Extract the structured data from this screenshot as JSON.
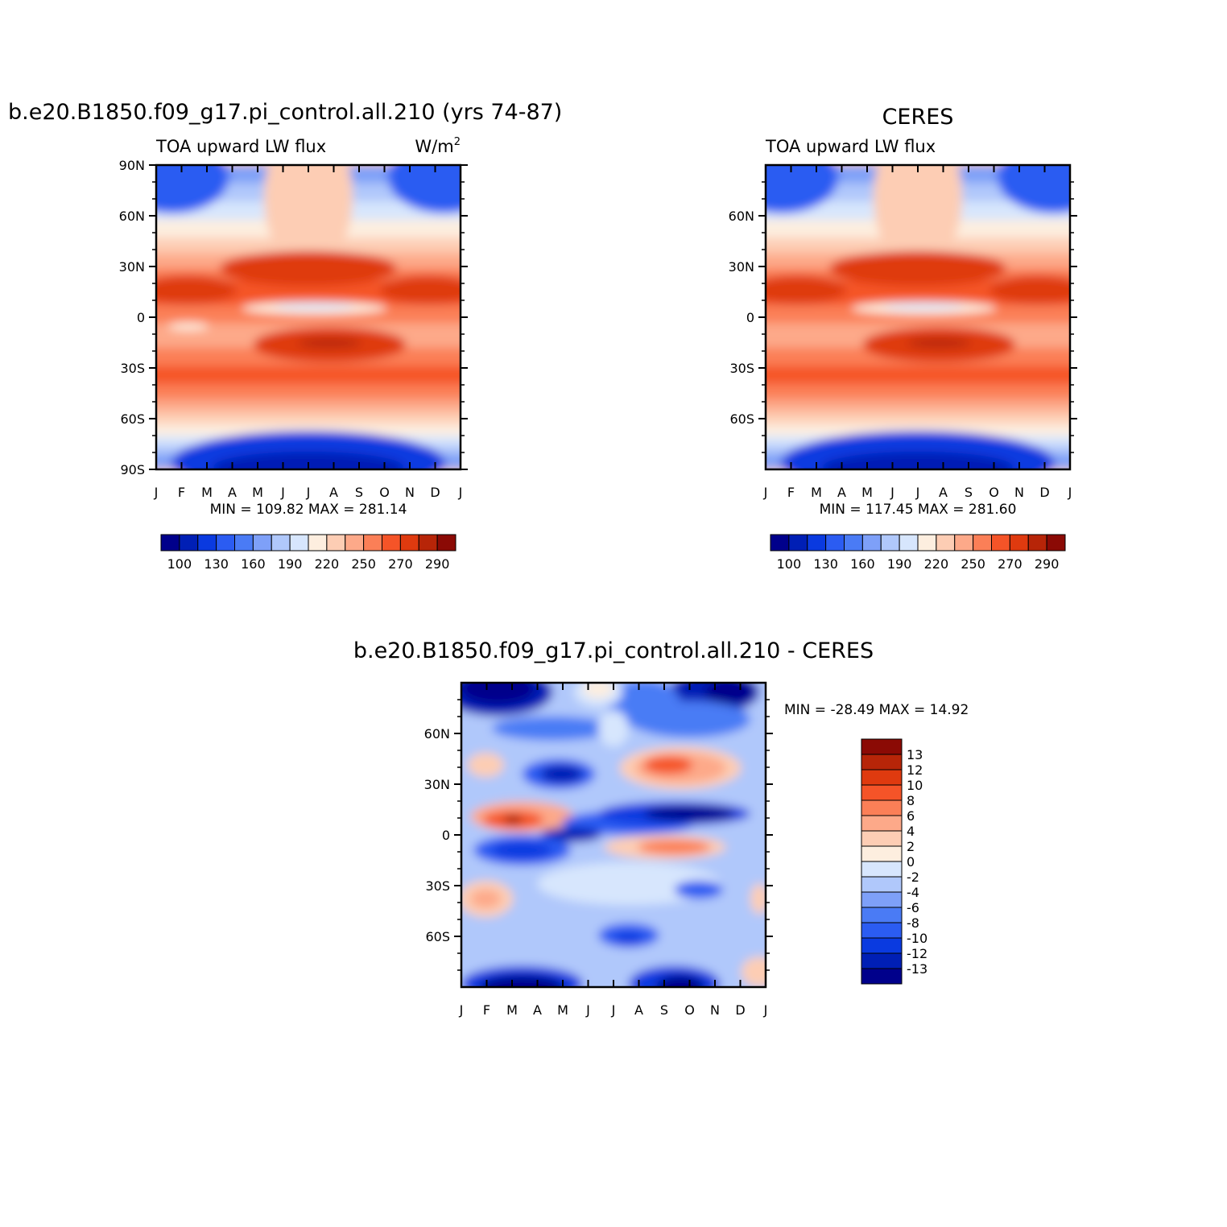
{
  "chart_data": [
    {
      "type": "heatmap",
      "title": "b.e20.B1850.f09_g17.pi_control.all.210 (yrs 74-87)",
      "left_label": "TOA upward LW flux",
      "units": "W/m",
      "units_sup": "2",
      "x_ticks": [
        "J",
        "F",
        "M",
        "A",
        "M",
        "J",
        "J",
        "A",
        "S",
        "O",
        "N",
        "D",
        "J"
      ],
      "y_ticks": [
        "90N",
        "60N",
        "30N",
        "0",
        "30S",
        "60S",
        "90S"
      ],
      "stat_text": "MIN = 109.82 MAX = 281.14",
      "min": 109.82,
      "max": 281.14,
      "colorbar": {
        "orientation": "horizontal",
        "labels": [
          "100",
          "130",
          "160",
          "190",
          "220",
          "250",
          "270",
          "290"
        ],
        "colors": [
          "#00008b",
          "#001fb5",
          "#0a3ae0",
          "#2b5cf2",
          "#4a7bf5",
          "#7ea0f8",
          "#b0c8fb",
          "#d7e6fd",
          "#fdeedf",
          "#fdcdb4",
          "#fda989",
          "#fb7f57",
          "#f55428",
          "#df3a0f",
          "#b72508",
          "#8b0a05"
        ]
      }
    },
    {
      "type": "heatmap",
      "title": "CERES",
      "left_label": "TOA upward LW flux",
      "x_ticks": [
        "J",
        "F",
        "M",
        "A",
        "M",
        "J",
        "J",
        "A",
        "S",
        "O",
        "N",
        "D",
        "J"
      ],
      "y_ticks": [
        "60N",
        "30N",
        "0",
        "30S",
        "60S"
      ],
      "stat_text": "MIN = 117.45 MAX = 281.60",
      "min": 117.45,
      "max": 281.6,
      "colorbar": {
        "orientation": "horizontal",
        "labels": [
          "100",
          "130",
          "160",
          "190",
          "220",
          "250",
          "270",
          "290"
        ],
        "colors": [
          "#00008b",
          "#001fb5",
          "#0a3ae0",
          "#2b5cf2",
          "#4a7bf5",
          "#7ea0f8",
          "#b0c8fb",
          "#d7e6fd",
          "#fdeedf",
          "#fdcdb4",
          "#fda989",
          "#fb7f57",
          "#f55428",
          "#df3a0f",
          "#b72508",
          "#8b0a05"
        ]
      }
    },
    {
      "type": "heatmap",
      "title": "b.e20.B1850.f09_g17.pi_control.all.210 - CERES",
      "x_ticks": [
        "J",
        "F",
        "M",
        "A",
        "M",
        "J",
        "J",
        "A",
        "S",
        "O",
        "N",
        "D",
        "J"
      ],
      "y_ticks": [
        "60N",
        "30N",
        "0",
        "30S",
        "60S"
      ],
      "stat_text": "MIN = -28.49 MAX = 14.92",
      "min": -28.49,
      "max": 14.92,
      "colorbar": {
        "orientation": "vertical",
        "labels": [
          "13",
          "12",
          "10",
          "8",
          "6",
          "4",
          "2",
          "0",
          "-2",
          "-4",
          "-6",
          "-8",
          "-10",
          "-12",
          "-13"
        ],
        "colors": [
          "#8b0a05",
          "#b72508",
          "#df3a0f",
          "#f55428",
          "#fb7f57",
          "#fda989",
          "#fdcdb4",
          "#fdeedf",
          "#d7e6fd",
          "#b0c8fb",
          "#7ea0f8",
          "#4a7bf5",
          "#2b5cf2",
          "#0a3ae0",
          "#001fb5",
          "#00008b"
        ]
      }
    }
  ]
}
